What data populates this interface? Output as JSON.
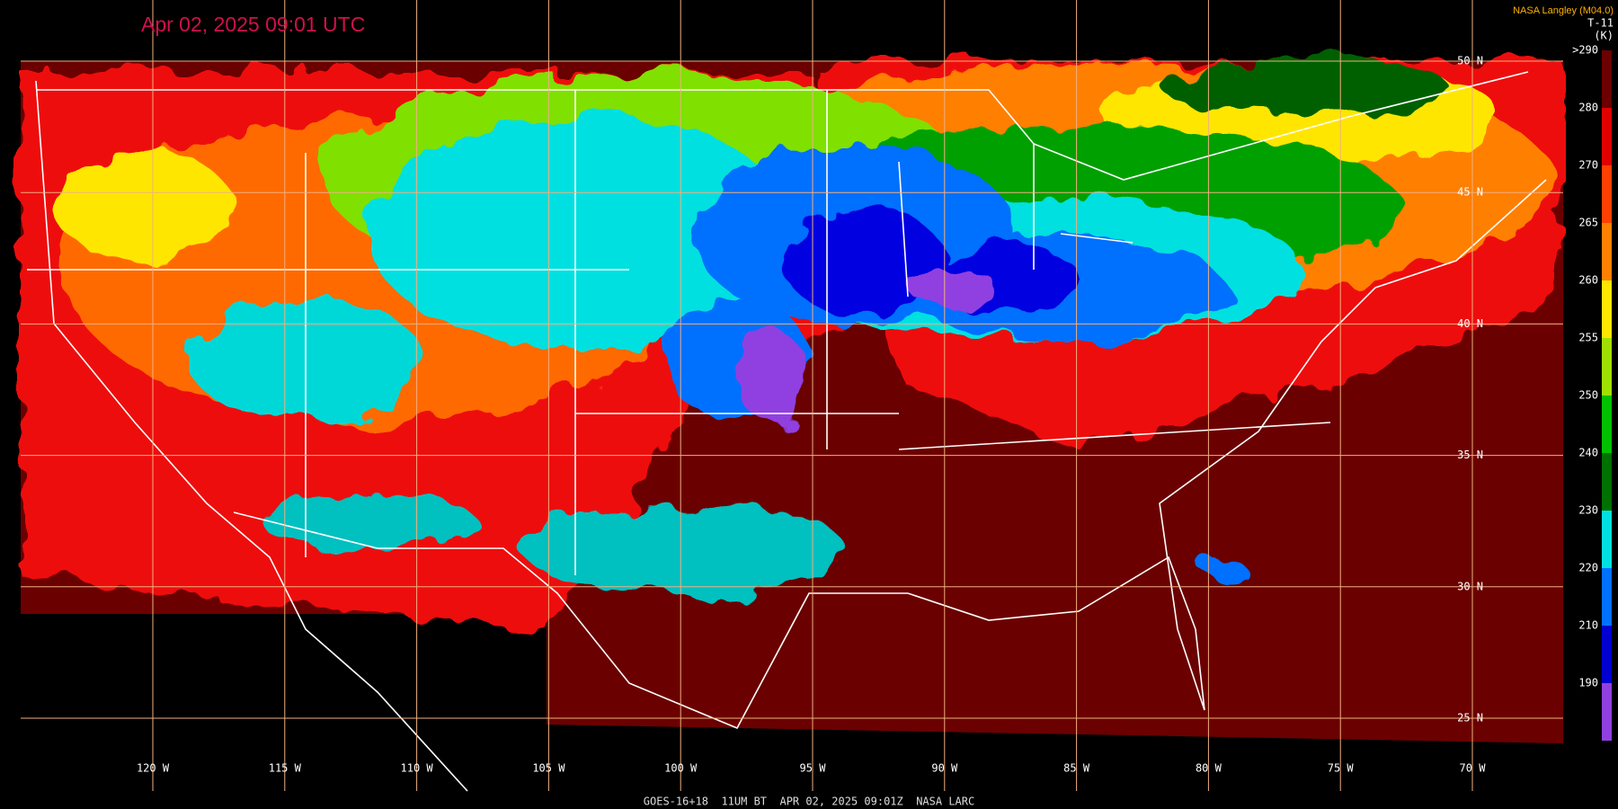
{
  "header": {
    "title": "Apr 02, 2025 09:01 UTC",
    "credit": "NASA Langley (M04.0)"
  },
  "legend": {
    "channel": "T-11",
    "unit": "(K)",
    "labels": [
      ">290",
      "280",
      "270",
      "265",
      "260",
      "255",
      "250",
      "240",
      "230",
      "220",
      "210",
      "190"
    ]
  },
  "grid": {
    "latitudes": [
      "50 N",
      "45 N",
      "40 N",
      "35 N",
      "30 N",
      "25 N"
    ],
    "longitudes": [
      "120 W",
      "115 W",
      "110 W",
      "105 W",
      "100 W",
      "95 W",
      "90 W",
      "85 W",
      "80 W",
      "75 W",
      "70 W"
    ]
  },
  "footer": "GOES-16+18  11UM BT  APR 02, 2025 09:01Z  NASA LARC"
}
